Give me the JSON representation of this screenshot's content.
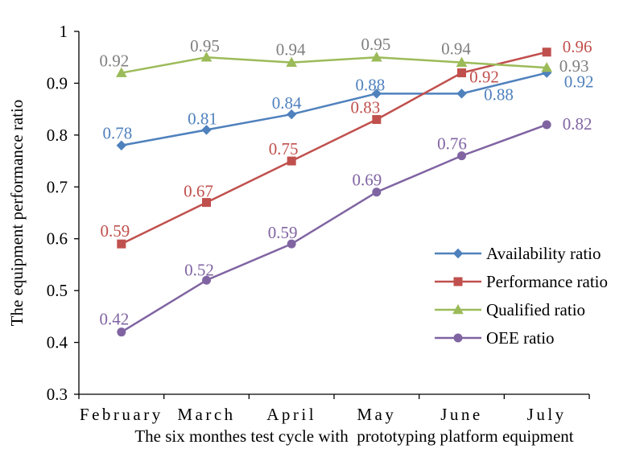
{
  "chart_data": {
    "type": "line",
    "title": "",
    "xlabel": "The six monthes test cycle with  prototyping platform equipment",
    "ylabel": "The equipment performance ratio",
    "categories": [
      "February",
      "March",
      "April",
      "May",
      "June",
      "July"
    ],
    "ylim": [
      0.3,
      1.0
    ],
    "yticks": [
      "0.3",
      "0.4",
      "0.5",
      "0.6",
      "0.7",
      "0.8",
      "0.9",
      "1"
    ],
    "grid": false,
    "legend_position": "bottom-right",
    "series": [
      {
        "name": "Availability ratio",
        "color": "#4F81BD",
        "marker": "diamond",
        "values": [
          0.78,
          0.81,
          0.84,
          0.88,
          0.88,
          0.92
        ],
        "labels": [
          "0.78",
          "0.81",
          "0.84",
          "0.88",
          "0.88",
          "0.92"
        ]
      },
      {
        "name": "Performance ratio",
        "color": "#C0504D",
        "marker": "square",
        "values": [
          0.59,
          0.67,
          0.75,
          0.83,
          0.92,
          0.96
        ],
        "labels": [
          "0.59",
          "0.67",
          "0.75",
          "0.83",
          "0.92",
          "0.96"
        ]
      },
      {
        "name": "Qualified ratio",
        "color": "#9BBB59",
        "marker": "triangle",
        "values": [
          0.92,
          0.95,
          0.94,
          0.95,
          0.94,
          0.93
        ],
        "labels": [
          "0.92",
          "0.95",
          "0.94",
          "0.95",
          "0.94",
          "0.93"
        ]
      },
      {
        "name": "OEE ratio",
        "color": "#8064A2",
        "marker": "circle",
        "values": [
          0.42,
          0.52,
          0.59,
          0.69,
          0.76,
          0.82
        ],
        "labels": [
          "0.42",
          "0.52",
          "0.59",
          "0.69",
          "0.76",
          "0.82"
        ]
      }
    ]
  },
  "label_colors": {
    "Availability ratio": "#4F81BD",
    "Performance ratio": "#C0504D",
    "Qualified ratio": "#7F7F7F",
    "OEE ratio": "#8064A2"
  }
}
